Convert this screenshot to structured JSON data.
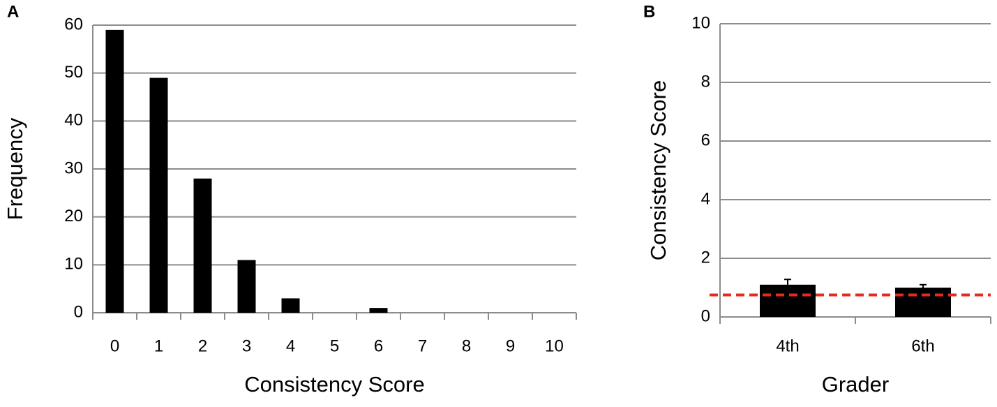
{
  "chart_data": [
    {
      "type": "bar",
      "label": "A",
      "x_label": "Consistency Score",
      "y_label": "Frequency",
      "categories": [
        "0",
        "1",
        "2",
        "3",
        "4",
        "5",
        "6",
        "7",
        "8",
        "9",
        "10"
      ],
      "values": [
        59,
        49,
        28,
        11,
        3,
        0,
        1,
        0,
        0,
        0,
        0
      ],
      "color": "#000000",
      "ylim": [
        0,
        60
      ],
      "yticks": [
        0,
        10,
        20,
        30,
        40,
        50,
        60
      ],
      "grid": true
    },
    {
      "type": "bar",
      "label": "B",
      "x_label": "Grader",
      "y_label": "Consistency Score",
      "categories": [
        "4th",
        "6th"
      ],
      "values": [
        1.1,
        1.0
      ],
      "errors": [
        0.18,
        0.1
      ],
      "color": "#000000",
      "ylim": [
        0,
        10
      ],
      "yticks": [
        0,
        2,
        4,
        6,
        8,
        10
      ],
      "grid": true,
      "reference_line": {
        "value": 0.75,
        "color": "#e8291c",
        "style": "dashed"
      }
    }
  ]
}
